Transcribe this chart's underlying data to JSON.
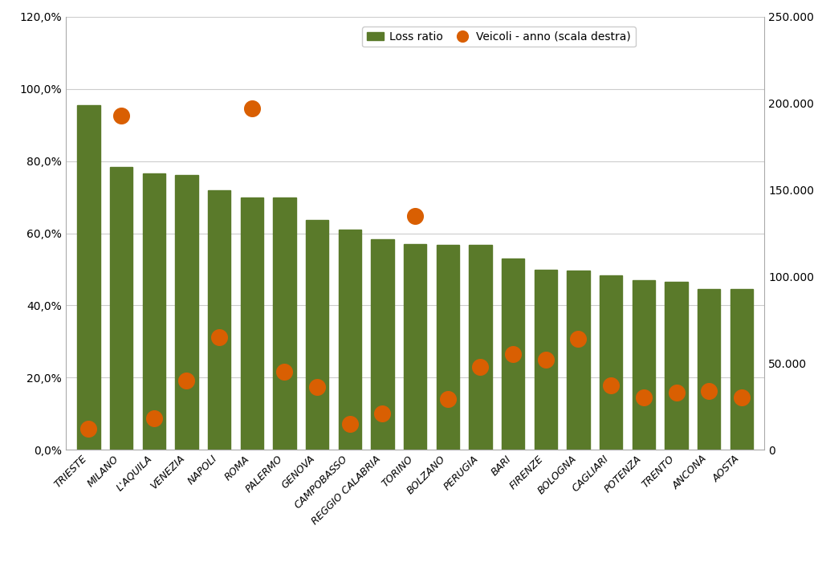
{
  "categories": [
    "TRIESTE",
    "MILANO",
    "L'AQUILA",
    "VENEZIA",
    "NAPOLI",
    "ROMA",
    "PALERMO",
    "GENOVA",
    "CAMPOBASSO",
    "REGGIO CALABRIA",
    "TORINO",
    "BOLZANO",
    "PERUGIA",
    "BARI",
    "FIRENZE",
    "BOLOGNA",
    "CAGLIARI",
    "POTENZA",
    "TRENTO",
    "ANCONA",
    "AOSTA"
  ],
  "loss_ratio": [
    0.955,
    0.783,
    0.766,
    0.762,
    0.72,
    0.7,
    0.7,
    0.637,
    0.61,
    0.583,
    0.57,
    0.567,
    0.567,
    0.53,
    0.498,
    0.497,
    0.484,
    0.47,
    0.465,
    0.445,
    0.445
  ],
  "veicoli": [
    12000,
    193000,
    18000,
    40000,
    65000,
    197000,
    45000,
    36000,
    15000,
    21000,
    135000,
    29000,
    48000,
    55000,
    52000,
    64000,
    37000,
    30000,
    33000,
    34000,
    30000
  ],
  "bar_color": "#5a7a2a",
  "dot_color": "#d95f02",
  "ylim_left": [
    0,
    1.2
  ],
  "ylim_right": [
    0,
    250000
  ],
  "yticks_left": [
    0.0,
    0.2,
    0.4,
    0.6,
    0.8,
    1.0,
    1.2
  ],
  "ytick_labels_left": [
    "0,0%",
    "20,0%",
    "40,0%",
    "60,0%",
    "80,0%",
    "100,0%",
    "120,0%"
  ],
  "yticks_right": [
    0,
    50000,
    100000,
    150000,
    200000,
    250000
  ],
  "ytick_labels_right": [
    "0",
    "50.000",
    "100.000",
    "150.000",
    "200.000",
    "250.000"
  ],
  "legend_loss_label": "Loss ratio",
  "legend_veicoli_label": "Veicoli - anno (scala destra)",
  "background_color": "#ffffff",
  "grid_color": "#cccccc"
}
